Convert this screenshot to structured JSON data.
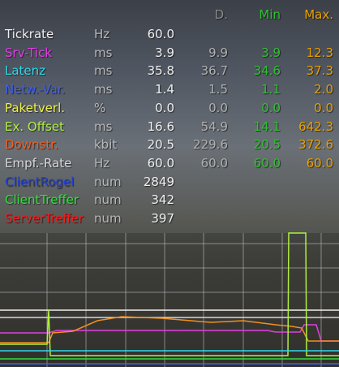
{
  "header": {
    "delta": "D.",
    "min": "Min",
    "max": "Max."
  },
  "rows": [
    {
      "name": "Tickrate",
      "unit": "Hz",
      "value": "60.0",
      "color": "#f0f0f0"
    },
    {
      "name": "Srv-Tick",
      "unit": "ms",
      "value": "3.9",
      "delta": "9.9",
      "min": "3.9",
      "max": "12.3",
      "color": "#e040e0"
    },
    {
      "name": "Latenz",
      "unit": "ms",
      "value": "35.8",
      "delta": "36.7",
      "min": "34.6",
      "max": "37.3",
      "color": "#30d8e8"
    },
    {
      "name": "Netw.-Var.",
      "unit": "ms",
      "value": "1.4",
      "delta": "1.5",
      "min": "1.1",
      "max": "2.0",
      "color": "#4060f0"
    },
    {
      "name": "Paketverl.",
      "unit": "%",
      "value": "0.0",
      "delta": "0.0",
      "min": "0.0",
      "max": "0.0",
      "color": "#f0f040"
    },
    {
      "name": "Ex. Offset",
      "unit": "ms",
      "value": "16.6",
      "delta": "54.9",
      "min": "14.1",
      "max": "642.3",
      "color": "#b0f040"
    },
    {
      "name": "Downstr.",
      "unit": "kbit",
      "value": "20.5",
      "delta": "229.6",
      "min": "20.5",
      "max": "372.6",
      "color": "#f06020"
    },
    {
      "name": "Empf.-Rate",
      "unit": "Hz",
      "value": "60.0",
      "delta": "60.0",
      "min": "60.0",
      "max": "60.0",
      "color": "#d8d8d8"
    },
    {
      "name": "ClientRogel",
      "unit": "num",
      "value": "2849",
      "color": "#2040e0"
    },
    {
      "name": "ClientTreffer",
      "unit": "num",
      "value": "342",
      "color": "#30e040"
    },
    {
      "name": "ServerTreffer",
      "unit": "num",
      "value": "397",
      "color": "#f02020"
    }
  ]
}
